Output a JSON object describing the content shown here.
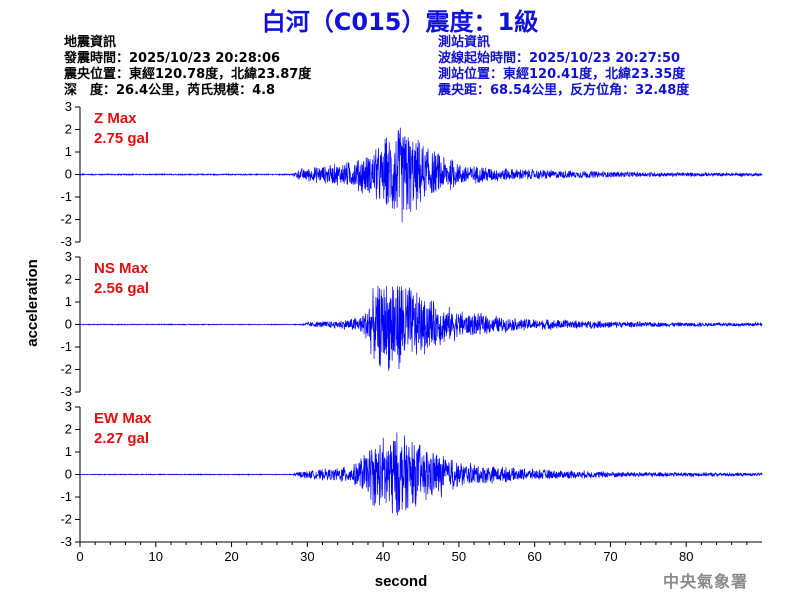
{
  "title": "白河（C015）震度：1級",
  "quake_info": {
    "heading": "地震資訊",
    "origin_time": "發震時間：2025/10/23 20:28:06",
    "epicenter": "震央位置：東經120.78度，北緯23.87度",
    "depth_magnitude": "深　度：26.4公里，芮氏規模：4.8"
  },
  "station_info": {
    "heading": "測站資訊",
    "wave_start": "波線起始時間：2025/10/23 20:27:50",
    "location": "測站位置：東經120.41度，北緯23.35度",
    "distance": "震央距：68.54公里，反方位角：32.48度"
  },
  "agency": "中央氣象署",
  "colors": {
    "trace": "#0000ff",
    "label": "#e01010",
    "title": "#1010e0"
  },
  "chart_data": {
    "type": "line",
    "xlabel": "second",
    "ylabel": "acceleration",
    "xlim": [
      0,
      90
    ],
    "xticks": [
      0,
      10,
      20,
      30,
      40,
      50,
      60,
      70,
      80
    ],
    "ylim": [
      -3,
      3
    ],
    "yticks": [
      3,
      2,
      1,
      0,
      -1,
      -2,
      -3
    ],
    "duration_s": 90,
    "panels": [
      {
        "component": "Z",
        "label": "Z Max",
        "max_text": "2.75 gal",
        "max": 2.75,
        "envelope": [
          [
            0,
            0.03
          ],
          [
            28,
            0.03
          ],
          [
            29,
            0.3
          ],
          [
            32,
            0.45
          ],
          [
            35,
            0.6
          ],
          [
            38,
            1.0
          ],
          [
            40,
            1.5
          ],
          [
            42,
            2.75
          ],
          [
            44,
            2.0
          ],
          [
            46,
            1.2
          ],
          [
            48,
            0.9
          ],
          [
            50,
            0.6
          ],
          [
            53,
            0.4
          ],
          [
            57,
            0.3
          ],
          [
            62,
            0.22
          ],
          [
            70,
            0.15
          ],
          [
            80,
            0.1
          ],
          [
            90,
            0.08
          ]
        ]
      },
      {
        "component": "NS",
        "label": "NS Max",
        "max_text": "2.56 gal",
        "max": 2.56,
        "envelope": [
          [
            0,
            0.02
          ],
          [
            29,
            0.02
          ],
          [
            30,
            0.12
          ],
          [
            34,
            0.2
          ],
          [
            37,
            0.4
          ],
          [
            39,
            1.9
          ],
          [
            41,
            2.56
          ],
          [
            43,
            2.2
          ],
          [
            45,
            1.5
          ],
          [
            48,
            1.0
          ],
          [
            50,
            0.7
          ],
          [
            53,
            0.5
          ],
          [
            58,
            0.3
          ],
          [
            65,
            0.22
          ],
          [
            75,
            0.12
          ],
          [
            90,
            0.08
          ]
        ]
      },
      {
        "component": "EW",
        "label": "EW Max",
        "max_text": "2.27 gal",
        "max": 2.27,
        "envelope": [
          [
            0,
            0.02
          ],
          [
            28,
            0.02
          ],
          [
            29,
            0.15
          ],
          [
            33,
            0.3
          ],
          [
            36,
            0.45
          ],
          [
            39,
            1.6
          ],
          [
            41,
            2.27
          ],
          [
            43,
            1.9
          ],
          [
            45,
            1.4
          ],
          [
            48,
            1.0
          ],
          [
            50,
            0.6
          ],
          [
            53,
            0.5
          ],
          [
            58,
            0.3
          ],
          [
            65,
            0.2
          ],
          [
            75,
            0.12
          ],
          [
            90,
            0.08
          ]
        ]
      }
    ]
  }
}
